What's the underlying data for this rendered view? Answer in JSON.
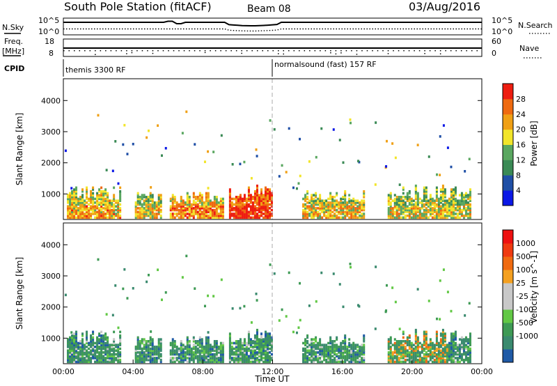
{
  "header": {
    "station": "South Pole Station (fitACF)",
    "beam": "Beam 08",
    "date": "03/Aug/2016"
  },
  "status_panels": {
    "nsky_label": "N.Sky",
    "nsearch_label": "N.Search",
    "noise_left_ticks": [
      "10^5",
      "10^0"
    ],
    "noise_right_ticks": [
      "10^5",
      "10^0"
    ],
    "freq_label": "Freq.",
    "freq_unit": "[MHz]",
    "freq_ticks": [
      "18",
      "8"
    ],
    "nave_label": "Nave",
    "nave_ticks": [
      "60",
      "0"
    ],
    "cpid_label": "CPID",
    "cpid_segments": [
      {
        "text": "themis 3300 RF",
        "start_hour": 0
      },
      {
        "text": "normalsound (fast) 157 RF",
        "start_hour": 12
      }
    ]
  },
  "colors": {
    "power_scale": [
      "#0b18e6",
      "#1f4fa6",
      "#3a8a55",
      "#5aa760",
      "#f2e52a",
      "#f0a015",
      "#ef6a10",
      "#ee1d10"
    ],
    "velocity_scale": [
      "#ee1010",
      "#ef3a10",
      "#f06a10",
      "#f4a020",
      "#c8c8c8",
      "#c8c8c8",
      "#62c845",
      "#3e9a55",
      "#3a8a6e",
      "#1f5aa6"
    ],
    "ground_scatter": "#8c8c8c"
  },
  "chart_data": [
    {
      "type": "heatmap",
      "name": "power",
      "ylabel": "Slant Range [km]",
      "yticks": [
        "1000",
        "2000",
        "3000",
        "4000"
      ],
      "ylim": [
        180,
        4700
      ],
      "colorbar_label": "Power [dB]",
      "colorbar_ticks": [
        "4",
        "8",
        "12",
        "16",
        "20",
        "24",
        "28"
      ],
      "colorbar_range": [
        0,
        32
      ],
      "scatter_bands": [
        {
          "start": 0.2,
          "end": 3.3,
          "top": 950,
          "level": 18
        },
        {
          "start": 4.1,
          "end": 5.6,
          "top": 800,
          "level": 16
        },
        {
          "start": 6.1,
          "end": 9.1,
          "top": 850,
          "level": 20
        },
        {
          "start": 9.5,
          "end": 12.0,
          "top": 1000,
          "level": 27
        },
        {
          "start": 13.7,
          "end": 17.2,
          "top": 850,
          "level": 17
        },
        {
          "start": 18.6,
          "end": 23.3,
          "top": 950,
          "level": 15
        }
      ]
    },
    {
      "type": "heatmap",
      "name": "velocity",
      "ylabel": "Slant Range [km]",
      "yticks": [
        "1000",
        "2000",
        "3000",
        "4000"
      ],
      "ylim": [
        180,
        4700
      ],
      "colorbar_label": "Velocity [m s^-1]",
      "colorbar_ticks": [
        "1000",
        "500",
        "100",
        "25",
        "-25",
        "-100",
        "-500",
        "-1000"
      ],
      "x_ticks": [
        "00:00",
        "04:00",
        "08:00",
        "12:00",
        "16:00",
        "20:00",
        "00:00"
      ],
      "xlabel": "Time UT",
      "xlim": [
        0,
        24
      ]
    }
  ]
}
